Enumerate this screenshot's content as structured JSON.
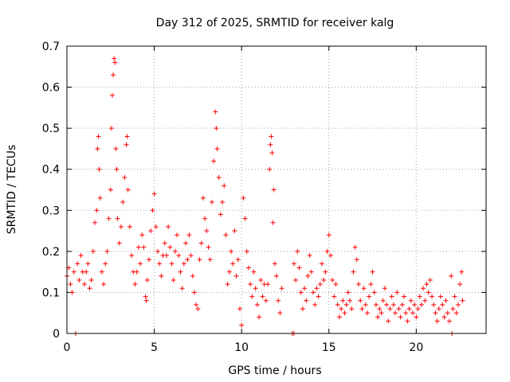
{
  "chart_data": {
    "type": "scatter",
    "title": "Day 312 of 2025, SRMTID for receiver kalg",
    "xlabel": "GPS time / hours",
    "ylabel": "SRMTID / TECUs",
    "xlim": [
      0,
      24
    ],
    "ylim": [
      0,
      0.7
    ],
    "xticks": [
      0,
      5,
      10,
      15,
      20
    ],
    "yticks": [
      0,
      0.1,
      0.2,
      0.3,
      0.4,
      0.5,
      0.6,
      0.7
    ],
    "grid": true,
    "marker": "plus",
    "color": "#ff0000",
    "series": [
      {
        "name": "SRMTID",
        "points": [
          [
            0.0,
            0.14
          ],
          [
            0.1,
            0.16
          ],
          [
            0.2,
            0.12
          ],
          [
            0.3,
            0.1
          ],
          [
            0.4,
            0.15
          ],
          [
            0.5,
            0.0
          ],
          [
            0.6,
            0.17
          ],
          [
            0.7,
            0.13
          ],
          [
            0.8,
            0.19
          ],
          [
            0.9,
            0.15
          ],
          [
            1.0,
            0.12
          ],
          [
            1.1,
            0.15
          ],
          [
            1.2,
            0.17
          ],
          [
            1.3,
            0.11
          ],
          [
            1.4,
            0.13
          ],
          [
            1.5,
            0.2
          ],
          [
            1.6,
            0.27
          ],
          [
            1.7,
            0.3
          ],
          [
            1.75,
            0.45
          ],
          [
            1.8,
            0.48
          ],
          [
            1.85,
            0.4
          ],
          [
            1.9,
            0.33
          ],
          [
            2.0,
            0.15
          ],
          [
            2.1,
            0.12
          ],
          [
            2.2,
            0.17
          ],
          [
            2.3,
            0.2
          ],
          [
            2.4,
            0.28
          ],
          [
            2.5,
            0.35
          ],
          [
            2.55,
            0.5
          ],
          [
            2.6,
            0.58
          ],
          [
            2.65,
            0.63
          ],
          [
            2.7,
            0.67
          ],
          [
            2.75,
            0.66
          ],
          [
            2.8,
            0.45
          ],
          [
            2.85,
            0.4
          ],
          [
            2.9,
            0.28
          ],
          [
            3.0,
            0.22
          ],
          [
            3.1,
            0.26
          ],
          [
            3.2,
            0.32
          ],
          [
            3.3,
            0.38
          ],
          [
            3.4,
            0.46
          ],
          [
            3.45,
            0.48
          ],
          [
            3.5,
            0.35
          ],
          [
            3.6,
            0.26
          ],
          [
            3.7,
            0.19
          ],
          [
            3.8,
            0.15
          ],
          [
            3.9,
            0.12
          ],
          [
            4.0,
            0.15
          ],
          [
            4.1,
            0.21
          ],
          [
            4.2,
            0.17
          ],
          [
            4.3,
            0.24
          ],
          [
            4.4,
            0.21
          ],
          [
            4.5,
            0.09
          ],
          [
            4.55,
            0.08
          ],
          [
            4.6,
            0.13
          ],
          [
            4.7,
            0.18
          ],
          [
            4.8,
            0.25
          ],
          [
            4.9,
            0.3
          ],
          [
            5.0,
            0.34
          ],
          [
            5.1,
            0.26
          ],
          [
            5.2,
            0.2
          ],
          [
            5.3,
            0.17
          ],
          [
            5.4,
            0.14
          ],
          [
            5.5,
            0.19
          ],
          [
            5.6,
            0.22
          ],
          [
            5.7,
            0.19
          ],
          [
            5.8,
            0.26
          ],
          [
            5.9,
            0.21
          ],
          [
            6.0,
            0.17
          ],
          [
            6.1,
            0.13
          ],
          [
            6.2,
            0.2
          ],
          [
            6.3,
            0.24
          ],
          [
            6.4,
            0.19
          ],
          [
            6.5,
            0.15
          ],
          [
            6.6,
            0.11
          ],
          [
            6.7,
            0.17
          ],
          [
            6.8,
            0.22
          ],
          [
            6.9,
            0.18
          ],
          [
            7.0,
            0.24
          ],
          [
            7.1,
            0.19
          ],
          [
            7.2,
            0.14
          ],
          [
            7.3,
            0.1
          ],
          [
            7.4,
            0.07
          ],
          [
            7.5,
            0.06
          ],
          [
            7.6,
            0.18
          ],
          [
            7.7,
            0.22
          ],
          [
            7.8,
            0.33
          ],
          [
            7.9,
            0.28
          ],
          [
            8.0,
            0.25
          ],
          [
            8.1,
            0.21
          ],
          [
            8.2,
            0.18
          ],
          [
            8.3,
            0.32
          ],
          [
            8.4,
            0.42
          ],
          [
            8.5,
            0.54
          ],
          [
            8.55,
            0.5
          ],
          [
            8.6,
            0.45
          ],
          [
            8.7,
            0.38
          ],
          [
            8.8,
            0.29
          ],
          [
            8.9,
            0.32
          ],
          [
            9.0,
            0.36
          ],
          [
            9.1,
            0.24
          ],
          [
            9.2,
            0.12
          ],
          [
            9.3,
            0.15
          ],
          [
            9.4,
            0.2
          ],
          [
            9.5,
            0.17
          ],
          [
            9.6,
            0.25
          ],
          [
            9.7,
            0.14
          ],
          [
            9.8,
            0.18
          ],
          [
            9.9,
            0.06
          ],
          [
            10.0,
            0.02
          ],
          [
            10.1,
            0.33
          ],
          [
            10.2,
            0.28
          ],
          [
            10.3,
            0.2
          ],
          [
            10.4,
            0.16
          ],
          [
            10.5,
            0.12
          ],
          [
            10.6,
            0.09
          ],
          [
            10.7,
            0.15
          ],
          [
            10.8,
            0.11
          ],
          [
            10.9,
            0.07
          ],
          [
            11.0,
            0.04
          ],
          [
            11.1,
            0.13
          ],
          [
            11.2,
            0.09
          ],
          [
            11.3,
            0.12
          ],
          [
            11.4,
            0.08
          ],
          [
            11.5,
            0.12
          ],
          [
            11.6,
            0.4
          ],
          [
            11.65,
            0.46
          ],
          [
            11.7,
            0.48
          ],
          [
            11.75,
            0.44
          ],
          [
            11.8,
            0.27
          ],
          [
            11.85,
            0.35
          ],
          [
            11.9,
            0.17
          ],
          [
            12.0,
            0.14
          ],
          [
            12.1,
            0.08
          ],
          [
            12.2,
            0.05
          ],
          [
            12.3,
            0.11
          ],
          [
            12.9,
            0.0
          ],
          [
            13.0,
            0.0
          ],
          [
            13.0,
            0.17
          ],
          [
            13.1,
            0.13
          ],
          [
            13.2,
            0.2
          ],
          [
            13.3,
            0.16
          ],
          [
            13.4,
            0.1
          ],
          [
            13.5,
            0.06
          ],
          [
            13.6,
            0.11
          ],
          [
            13.7,
            0.08
          ],
          [
            13.8,
            0.14
          ],
          [
            13.9,
            0.19
          ],
          [
            14.0,
            0.15
          ],
          [
            14.1,
            0.1
          ],
          [
            14.2,
            0.07
          ],
          [
            14.3,
            0.11
          ],
          [
            14.4,
            0.09
          ],
          [
            14.5,
            0.12
          ],
          [
            14.6,
            0.17
          ],
          [
            14.7,
            0.13
          ],
          [
            14.8,
            0.15
          ],
          [
            14.9,
            0.2
          ],
          [
            15.0,
            0.24
          ],
          [
            15.1,
            0.19
          ],
          [
            15.2,
            0.13
          ],
          [
            15.3,
            0.09
          ],
          [
            15.4,
            0.12
          ],
          [
            15.5,
            0.07
          ],
          [
            15.6,
            0.04
          ],
          [
            15.7,
            0.06
          ],
          [
            15.8,
            0.08
          ],
          [
            15.9,
            0.05
          ],
          [
            16.0,
            0.07
          ],
          [
            16.1,
            0.1
          ],
          [
            16.2,
            0.08
          ],
          [
            16.3,
            0.06
          ],
          [
            16.4,
            0.15
          ],
          [
            16.5,
            0.21
          ],
          [
            16.6,
            0.18
          ],
          [
            16.7,
            0.12
          ],
          [
            16.8,
            0.08
          ],
          [
            16.9,
            0.06
          ],
          [
            17.0,
            0.11
          ],
          [
            17.1,
            0.07
          ],
          [
            17.2,
            0.05
          ],
          [
            17.3,
            0.09
          ],
          [
            17.4,
            0.12
          ],
          [
            17.5,
            0.15
          ],
          [
            17.6,
            0.1
          ],
          [
            17.7,
            0.07
          ],
          [
            17.8,
            0.04
          ],
          [
            17.9,
            0.06
          ],
          [
            18.0,
            0.05
          ],
          [
            18.1,
            0.08
          ],
          [
            18.2,
            0.11
          ],
          [
            18.3,
            0.07
          ],
          [
            18.4,
            0.03
          ],
          [
            18.5,
            0.06
          ],
          [
            18.6,
            0.09
          ],
          [
            18.7,
            0.07
          ],
          [
            18.8,
            0.05
          ],
          [
            18.9,
            0.1
          ],
          [
            19.0,
            0.06
          ],
          [
            19.1,
            0.04
          ],
          [
            19.2,
            0.07
          ],
          [
            19.3,
            0.09
          ],
          [
            19.4,
            0.05
          ],
          [
            19.5,
            0.03
          ],
          [
            19.6,
            0.06
          ],
          [
            19.7,
            0.08
          ],
          [
            19.8,
            0.05
          ],
          [
            19.9,
            0.07
          ],
          [
            20.0,
            0.04
          ],
          [
            20.1,
            0.06
          ],
          [
            20.2,
            0.09
          ],
          [
            20.3,
            0.07
          ],
          [
            20.4,
            0.11
          ],
          [
            20.5,
            0.08
          ],
          [
            20.6,
            0.12
          ],
          [
            20.7,
            0.1
          ],
          [
            20.8,
            0.13
          ],
          [
            20.9,
            0.09
          ],
          [
            21.0,
            0.07
          ],
          [
            21.1,
            0.05
          ],
          [
            21.2,
            0.03
          ],
          [
            21.3,
            0.06
          ],
          [
            21.4,
            0.09
          ],
          [
            21.5,
            0.07
          ],
          [
            21.6,
            0.04
          ],
          [
            21.7,
            0.08
          ],
          [
            21.8,
            0.05
          ],
          [
            21.9,
            0.03
          ],
          [
            22.0,
            0.14
          ],
          [
            22.05,
            0.0
          ],
          [
            22.1,
            0.06
          ],
          [
            22.2,
            0.09
          ],
          [
            22.3,
            0.05
          ],
          [
            22.4,
            0.07
          ],
          [
            22.5,
            0.12
          ],
          [
            22.6,
            0.15
          ],
          [
            22.65,
            0.08
          ]
        ]
      }
    ]
  }
}
